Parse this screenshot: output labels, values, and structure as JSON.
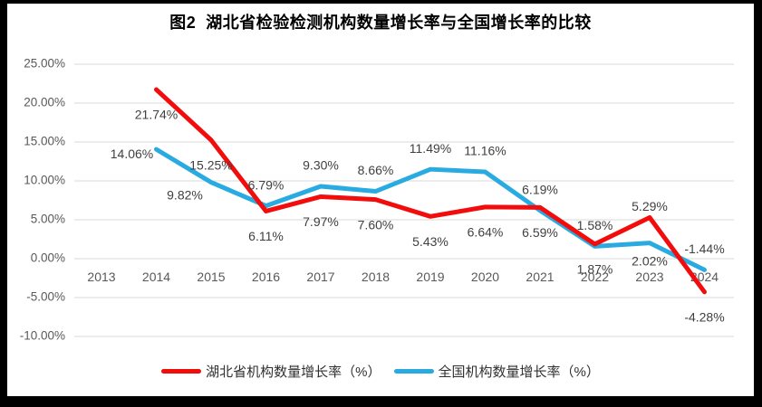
{
  "title": "图2  湖北省检验检测机构数量增长率与全国增长率的比较",
  "chart_data": {
    "type": "line",
    "title": "图2  湖北省检验检测机构数量增长率与全国增长率的比较",
    "categories": [
      "2013",
      "2014",
      "2015",
      "2016",
      "2017",
      "2018",
      "2019",
      "2020",
      "2021",
      "2022",
      "2023",
      "2024"
    ],
    "series": [
      {
        "name": "全国机构数量增长率（%）",
        "color": "#29ABE2",
        "values": [
          null,
          14.06,
          9.82,
          6.79,
          9.3,
          8.66,
          11.49,
          11.16,
          6.19,
          1.58,
          2.02,
          -1.44
        ],
        "label_positions": [
          null,
          "left",
          "below-left",
          "above",
          "above",
          "above",
          "above",
          "above",
          "above",
          "above",
          "below-near",
          "above"
        ]
      },
      {
        "name": "湖北省机构数量增长率（%）",
        "color": "#F20C0C",
        "values": [
          null,
          21.74,
          15.25,
          6.11,
          7.97,
          7.6,
          5.43,
          6.64,
          6.59,
          1.87,
          5.29,
          -4.28
        ],
        "label_positions": [
          null,
          "below",
          "below",
          "below",
          "below",
          "below",
          "below",
          "below",
          "below",
          "below",
          "above-near",
          "below"
        ]
      }
    ],
    "ylim": [
      -10,
      25
    ],
    "ytick_step": 5,
    "ytick_format": "percent-2dp",
    "value_label_format": "percent-2dp",
    "grid": true,
    "legend_position": "bottom",
    "legend_order": [
      "湖北省机构数量增长率（%）",
      "全国机构数量增长率（%）"
    ]
  },
  "legend": {
    "items": [
      {
        "label": "湖北省机构数量增长率（%）",
        "color": "#F20C0C"
      },
      {
        "label": "全国机构数量增长率（%）",
        "color": "#29ABE2"
      }
    ]
  },
  "colors": {
    "background": "#FFFFFF",
    "border": "#000000",
    "grid": "#D9D9D9",
    "axis_text": "#595959",
    "data_label_text": "#404040",
    "title_text": "#000000",
    "hubei_red": "#F20C0C",
    "national_blue": "#29ABE2"
  }
}
